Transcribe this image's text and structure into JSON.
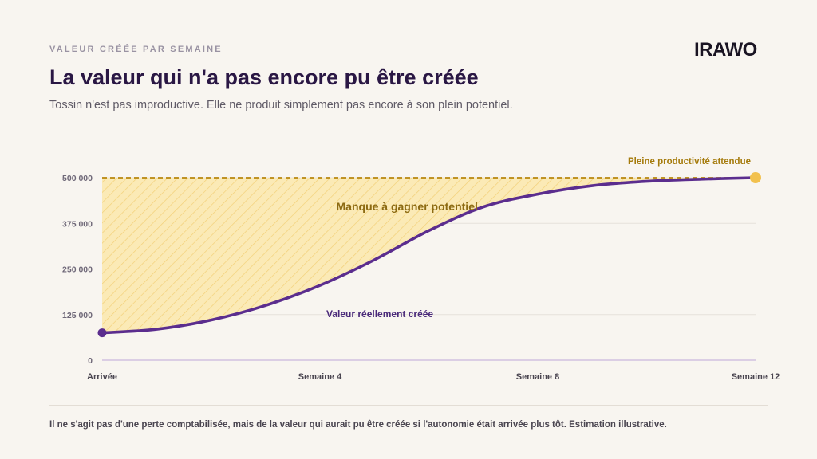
{
  "header": {
    "eyebrow": "VALEUR CRÉÉE PAR SEMAINE",
    "title": "La valeur qui n'a pas encore pu être créée",
    "subtitle": "Tossin n'est pas improductive. Elle ne produit simplement pas encore à son plein potentiel."
  },
  "logo": {
    "text": "IRAWO"
  },
  "footnote": "Il ne s'agit pas d'une perte comptabilisée, mais de la valeur qui aurait pu être créée si l'autonomie était arrivée plus tôt. Estimation illustrative.",
  "colors": {
    "actual_line": "#5b2d8e",
    "target_line": "#b8860b",
    "gap_fill": "#fbe7a8",
    "gap_hatch": "#f2cc6a",
    "end_marker": "#f2c14e"
  },
  "chart_data": {
    "type": "area",
    "x_ticks": [
      {
        "week": 0,
        "label": "Arrivée"
      },
      {
        "week": 4,
        "label": "Semaine 4"
      },
      {
        "week": 8,
        "label": "Semaine 8"
      },
      {
        "week": 12,
        "label": "Semaine 12"
      }
    ],
    "xlim": [
      0,
      12
    ],
    "ylim": [
      0,
      500000
    ],
    "y_ticks": [
      {
        "value": 0,
        "label": "0"
      },
      {
        "value": 125000,
        "label": "125 000"
      },
      {
        "value": 250000,
        "label": "250 000"
      },
      {
        "value": 375000,
        "label": "375 000"
      },
      {
        "value": 500000,
        "label": "500 000"
      }
    ],
    "grid": true,
    "series": [
      {
        "name": "Valeur réellement créée",
        "style": "solid",
        "x": [
          0,
          1,
          2,
          3,
          4,
          5,
          6,
          7,
          8,
          9,
          10,
          11,
          12
        ],
        "y": [
          75000,
          85000,
          110000,
          150000,
          205000,
          275000,
          355000,
          420000,
          455000,
          478000,
          490000,
          496000,
          500000
        ]
      },
      {
        "name": "Pleine productivité attendue",
        "style": "dashed",
        "x": [
          0,
          12
        ],
        "y": [
          500000,
          500000
        ]
      }
    ],
    "annotations": [
      {
        "text": "Manque à gagner potentiel",
        "x": 5.6,
        "y": 410000
      },
      {
        "text": "Valeur réellement créée",
        "x": 5.1,
        "y": 118000
      },
      {
        "text": "Pleine productivité attendue",
        "x": 12,
        "y": 540000
      }
    ]
  }
}
